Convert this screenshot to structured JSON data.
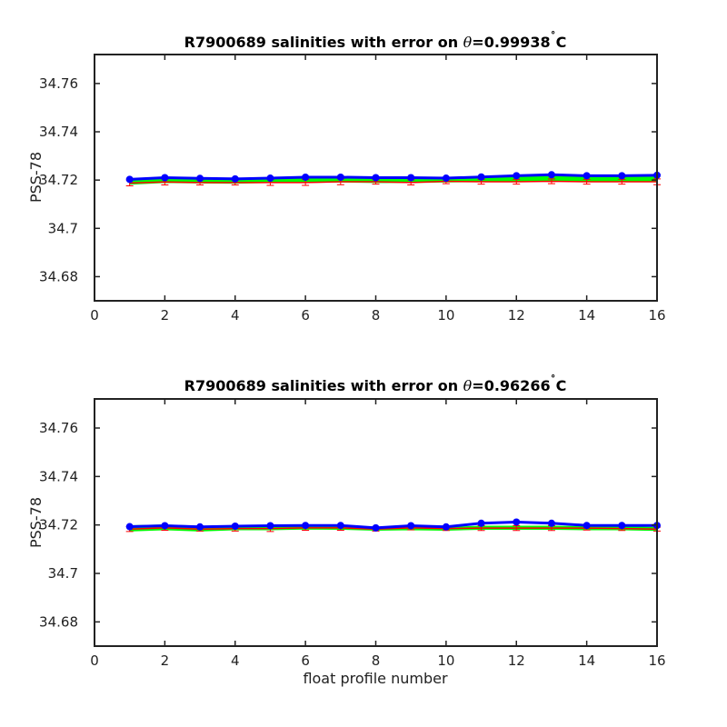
{
  "figure": {
    "xlabel": "float profile number"
  },
  "colors": {
    "error_bar": "#ff0000",
    "band": "#00ff00",
    "line": "#0000ff",
    "axes": "#222222"
  },
  "chart_data": [
    {
      "type": "line",
      "title": "R7900689 salinities with error on θ=0.99938˚C",
      "title_prefix": "R7900689 salinities with error on ",
      "theta_symbol": "θ",
      "theta_value": "=0.99938",
      "degree_mark": "˚",
      "unit": "C",
      "ylabel": "PSS-78",
      "xlabel": "",
      "xlim": [
        0,
        16
      ],
      "ylim": [
        34.67,
        34.772
      ],
      "xticks": [
        "0",
        "2",
        "4",
        "6",
        "8",
        "10",
        "12",
        "14",
        "16"
      ],
      "yticks": [
        "34.68",
        "34.7",
        "34.72",
        "34.74",
        "34.76"
      ],
      "x": [
        1,
        2,
        3,
        4,
        5,
        6,
        7,
        8,
        9,
        10,
        11,
        12,
        13,
        14,
        15,
        16
      ],
      "series": [
        {
          "role": "float-line",
          "values": [
            34.7203,
            34.721,
            34.7207,
            34.7205,
            34.7208,
            34.7212,
            34.7212,
            34.721,
            34.721,
            34.7208,
            34.7213,
            34.7218,
            34.7222,
            34.7218,
            34.7218,
            34.722
          ]
        },
        {
          "role": "upper-band",
          "values": [
            34.7205,
            34.7212,
            34.7208,
            34.7207,
            34.721,
            34.7213,
            34.7213,
            34.7212,
            34.7212,
            34.721,
            34.7212,
            34.7215,
            34.7215,
            34.7213,
            34.7213,
            34.7213
          ]
        },
        {
          "role": "lower-band",
          "values": [
            34.7183,
            34.719,
            34.7188,
            34.7187,
            34.719,
            34.719,
            34.7192,
            34.719,
            34.719,
            34.7192,
            34.7193,
            34.7195,
            34.7197,
            34.7195,
            34.7195,
            34.7195
          ]
        },
        {
          "role": "mapped-mean",
          "values": [
            34.7188,
            34.7192,
            34.719,
            34.719,
            34.719,
            34.719,
            34.7193,
            34.7193,
            34.719,
            34.7195,
            34.7193,
            34.7193,
            34.7195,
            34.7193,
            34.7193,
            34.7193
          ],
          "error": [
            0.0012,
            0.0012,
            0.001,
            0.001,
            0.0012,
            0.0012,
            0.0012,
            0.001,
            0.001,
            0.001,
            0.001,
            0.001,
            0.001,
            0.001,
            0.001,
            0.0012
          ]
        }
      ]
    },
    {
      "type": "line",
      "title": "R7900689 salinities with error on θ=0.96266˚C",
      "title_prefix": "R7900689 salinities with error on ",
      "theta_symbol": "θ",
      "theta_value": "=0.96266",
      "degree_mark": "˚",
      "unit": "C",
      "ylabel": "PSS-78",
      "xlabel": "float profile number",
      "xlim": [
        0,
        16
      ],
      "ylim": [
        34.67,
        34.772
      ],
      "xticks": [
        "0",
        "2",
        "4",
        "6",
        "8",
        "10",
        "12",
        "14",
        "16"
      ],
      "yticks": [
        "34.68",
        "34.7",
        "34.72",
        "34.74",
        "34.76"
      ],
      "x": [
        1,
        2,
        3,
        4,
        5,
        6,
        7,
        8,
        9,
        10,
        11,
        12,
        13,
        14,
        15,
        16
      ],
      "series": [
        {
          "role": "float-line",
          "values": [
            34.7193,
            34.7197,
            34.7192,
            34.7195,
            34.7197,
            34.7198,
            34.7198,
            34.7188,
            34.7197,
            34.7192,
            34.7207,
            34.7212,
            34.7207,
            34.7198,
            34.7198,
            34.7198
          ]
        },
        {
          "role": "upper-band",
          "values": [
            34.7197,
            34.72,
            34.7195,
            34.7195,
            34.7195,
            34.7195,
            34.7195,
            34.719,
            34.7195,
            34.719,
            34.7195,
            34.7195,
            34.7195,
            34.7193,
            34.7193,
            34.719
          ]
        },
        {
          "role": "lower-band",
          "values": [
            34.7175,
            34.718,
            34.7175,
            34.718,
            34.718,
            34.7183,
            34.7182,
            34.7178,
            34.718,
            34.7178,
            34.7182,
            34.7182,
            34.7182,
            34.718,
            34.718,
            34.7177
          ]
        },
        {
          "role": "mapped-mean",
          "values": [
            34.7183,
            34.7188,
            34.7183,
            34.7185,
            34.7185,
            34.7188,
            34.7188,
            34.7183,
            34.7188,
            34.7185,
            34.7187,
            34.7187,
            34.7187,
            34.7187,
            34.7185,
            34.7183
          ],
          "error": [
            0.001,
            0.001,
            0.0008,
            0.001,
            0.0012,
            0.001,
            0.001,
            0.0008,
            0.0008,
            0.0008,
            0.001,
            0.001,
            0.001,
            0.0008,
            0.0008,
            0.0008
          ]
        }
      ]
    }
  ]
}
